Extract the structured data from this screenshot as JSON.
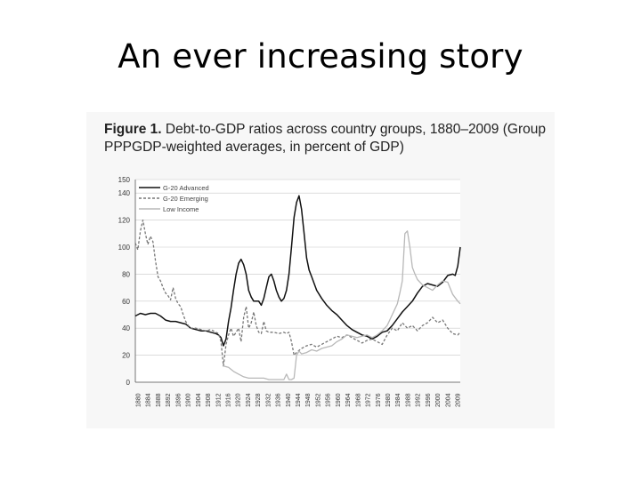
{
  "slide": {
    "title": "An ever increasing story"
  },
  "figure": {
    "label": "Figure 1.",
    "caption": "Debt-to-GDP ratios across country groups, 1880–2009 (Group PPPGDP-weighted averages, in percent of GDP)"
  },
  "chart_data": {
    "type": "line",
    "title": "",
    "xlabel": "",
    "ylabel": "",
    "xlim": [
      1880,
      2009
    ],
    "ylim": [
      0,
      150
    ],
    "yticks": [
      0,
      20,
      40,
      60,
      80,
      100,
      120,
      140,
      150
    ],
    "xticks": [
      "1880",
      "1884",
      "1888",
      "1892",
      "1896",
      "1900",
      "1904",
      "1908",
      "1912",
      "1916",
      "1920",
      "1924",
      "1928",
      "1932",
      "1936",
      "1940",
      "1944",
      "1948",
      "1952",
      "1956",
      "1960",
      "1964",
      "1968",
      "1972",
      "1976",
      "1980",
      "1984",
      "1988",
      "1992",
      "1996",
      "2000",
      "2004",
      "2009"
    ],
    "grid": "horizontal",
    "legend_position": "top-left",
    "series": [
      {
        "name": "G-20 Advanced",
        "color": "#111111",
        "style": "solid",
        "points": [
          [
            1880,
            49
          ],
          [
            1882,
            51
          ],
          [
            1884,
            50
          ],
          [
            1886,
            51
          ],
          [
            1888,
            51
          ],
          [
            1890,
            49
          ],
          [
            1892,
            46
          ],
          [
            1894,
            45
          ],
          [
            1896,
            45
          ],
          [
            1898,
            44
          ],
          [
            1900,
            43
          ],
          [
            1902,
            40
          ],
          [
            1904,
            39
          ],
          [
            1906,
            38
          ],
          [
            1908,
            38
          ],
          [
            1910,
            37
          ],
          [
            1912,
            36
          ],
          [
            1913,
            35
          ],
          [
            1914,
            33
          ],
          [
            1915,
            27
          ],
          [
            1916,
            32
          ],
          [
            1917,
            45
          ],
          [
            1918,
            55
          ],
          [
            1919,
            68
          ],
          [
            1920,
            80
          ],
          [
            1921,
            88
          ],
          [
            1922,
            91
          ],
          [
            1923,
            87
          ],
          [
            1924,
            80
          ],
          [
            1925,
            68
          ],
          [
            1926,
            63
          ],
          [
            1927,
            60
          ],
          [
            1928,
            60
          ],
          [
            1929,
            60
          ],
          [
            1930,
            57
          ],
          [
            1931,
            62
          ],
          [
            1932,
            70
          ],
          [
            1933,
            78
          ],
          [
            1934,
            80
          ],
          [
            1935,
            75
          ],
          [
            1936,
            68
          ],
          [
            1937,
            63
          ],
          [
            1938,
            60
          ],
          [
            1939,
            62
          ],
          [
            1940,
            68
          ],
          [
            1941,
            80
          ],
          [
            1942,
            100
          ],
          [
            1943,
            122
          ],
          [
            1944,
            133
          ],
          [
            1945,
            138
          ],
          [
            1946,
            128
          ],
          [
            1947,
            110
          ],
          [
            1948,
            92
          ],
          [
            1949,
            83
          ],
          [
            1950,
            78
          ],
          [
            1952,
            68
          ],
          [
            1954,
            62
          ],
          [
            1956,
            57
          ],
          [
            1958,
            53
          ],
          [
            1960,
            50
          ],
          [
            1962,
            46
          ],
          [
            1964,
            42
          ],
          [
            1966,
            39
          ],
          [
            1968,
            37
          ],
          [
            1970,
            35
          ],
          [
            1972,
            34
          ],
          [
            1974,
            32
          ],
          [
            1976,
            34
          ],
          [
            1978,
            37
          ],
          [
            1980,
            38
          ],
          [
            1982,
            42
          ],
          [
            1984,
            47
          ],
          [
            1986,
            52
          ],
          [
            1988,
            56
          ],
          [
            1990,
            60
          ],
          [
            1992,
            66
          ],
          [
            1994,
            71
          ],
          [
            1996,
            73
          ],
          [
            1998,
            72
          ],
          [
            2000,
            71
          ],
          [
            2002,
            74
          ],
          [
            2004,
            79
          ],
          [
            2006,
            80
          ],
          [
            2007,
            79
          ],
          [
            2008,
            86
          ],
          [
            2009,
            100
          ]
        ]
      },
      {
        "name": "G-20 Emerging",
        "color": "#777777",
        "style": "dashed",
        "points": [
          [
            1880,
            103
          ],
          [
            1881,
            98
          ],
          [
            1882,
            112
          ],
          [
            1883,
            120
          ],
          [
            1884,
            110
          ],
          [
            1885,
            102
          ],
          [
            1886,
            108
          ],
          [
            1887,
            104
          ],
          [
            1888,
            90
          ],
          [
            1889,
            78
          ],
          [
            1890,
            75
          ],
          [
            1891,
            70
          ],
          [
            1892,
            66
          ],
          [
            1893,
            64
          ],
          [
            1894,
            61
          ],
          [
            1895,
            70
          ],
          [
            1896,
            62
          ],
          [
            1897,
            58
          ],
          [
            1898,
            56
          ],
          [
            1899,
            50
          ],
          [
            1900,
            45
          ],
          [
            1901,
            42
          ],
          [
            1902,
            40
          ],
          [
            1904,
            40
          ],
          [
            1906,
            39
          ],
          [
            1908,
            38
          ],
          [
            1910,
            39
          ],
          [
            1912,
            37
          ],
          [
            1913,
            36
          ],
          [
            1914,
            30
          ],
          [
            1915,
            12
          ],
          [
            1916,
            28
          ],
          [
            1917,
            35
          ],
          [
            1918,
            40
          ],
          [
            1919,
            34
          ],
          [
            1920,
            37
          ],
          [
            1921,
            40
          ],
          [
            1922,
            30
          ],
          [
            1923,
            48
          ],
          [
            1924,
            56
          ],
          [
            1925,
            40
          ],
          [
            1926,
            44
          ],
          [
            1927,
            52
          ],
          [
            1928,
            42
          ],
          [
            1929,
            37
          ],
          [
            1930,
            36
          ],
          [
            1931,
            45
          ],
          [
            1932,
            38
          ],
          [
            1933,
            37
          ],
          [
            1935,
            37
          ],
          [
            1937,
            36
          ],
          [
            1939,
            37
          ],
          [
            1940,
            36
          ],
          [
            1941,
            37
          ],
          [
            1942,
            30
          ],
          [
            1943,
            20
          ],
          [
            1944,
            22
          ],
          [
            1946,
            25
          ],
          [
            1948,
            27
          ],
          [
            1950,
            28
          ],
          [
            1952,
            26
          ],
          [
            1954,
            28
          ],
          [
            1956,
            30
          ],
          [
            1958,
            32
          ],
          [
            1960,
            34
          ],
          [
            1962,
            33
          ],
          [
            1964,
            35
          ],
          [
            1966,
            33
          ],
          [
            1968,
            31
          ],
          [
            1970,
            29
          ],
          [
            1972,
            31
          ],
          [
            1974,
            32
          ],
          [
            1976,
            30
          ],
          [
            1978,
            28
          ],
          [
            1980,
            35
          ],
          [
            1982,
            40
          ],
          [
            1984,
            38
          ],
          [
            1986,
            44
          ],
          [
            1988,
            40
          ],
          [
            1990,
            42
          ],
          [
            1992,
            38
          ],
          [
            1994,
            42
          ],
          [
            1996,
            44
          ],
          [
            1998,
            48
          ],
          [
            2000,
            44
          ],
          [
            2002,
            46
          ],
          [
            2004,
            40
          ],
          [
            2006,
            36
          ],
          [
            2008,
            35
          ],
          [
            2009,
            37
          ]
        ]
      },
      {
        "name": "Low Income",
        "color": "#b8b8b8",
        "style": "solid",
        "points": [
          [
            1915,
            12
          ],
          [
            1917,
            11
          ],
          [
            1919,
            8
          ],
          [
            1921,
            6
          ],
          [
            1923,
            4
          ],
          [
            1925,
            3
          ],
          [
            1927,
            3
          ],
          [
            1929,
            3
          ],
          [
            1931,
            3
          ],
          [
            1933,
            2
          ],
          [
            1935,
            2
          ],
          [
            1937,
            2
          ],
          [
            1939,
            2
          ],
          [
            1940,
            6
          ],
          [
            1941,
            2
          ],
          [
            1942,
            2
          ],
          [
            1943,
            3
          ],
          [
            1944,
            20
          ],
          [
            1945,
            23
          ],
          [
            1946,
            21
          ],
          [
            1948,
            22
          ],
          [
            1950,
            24
          ],
          [
            1952,
            23
          ],
          [
            1954,
            25
          ],
          [
            1956,
            26
          ],
          [
            1958,
            27
          ],
          [
            1960,
            30
          ],
          [
            1962,
            32
          ],
          [
            1964,
            35
          ],
          [
            1966,
            34
          ],
          [
            1968,
            33
          ],
          [
            1970,
            34
          ],
          [
            1972,
            35
          ],
          [
            1974,
            33
          ],
          [
            1976,
            35
          ],
          [
            1978,
            38
          ],
          [
            1980,
            42
          ],
          [
            1982,
            50
          ],
          [
            1984,
            58
          ],
          [
            1985,
            66
          ],
          [
            1986,
            75
          ],
          [
            1987,
            110
          ],
          [
            1988,
            112
          ],
          [
            1989,
            100
          ],
          [
            1990,
            85
          ],
          [
            1991,
            80
          ],
          [
            1992,
            76
          ],
          [
            1994,
            72
          ],
          [
            1996,
            70
          ],
          [
            1998,
            68
          ],
          [
            2000,
            72
          ],
          [
            2002,
            75
          ],
          [
            2004,
            74
          ],
          [
            2006,
            65
          ],
          [
            2008,
            60
          ],
          [
            2009,
            58
          ]
        ]
      }
    ]
  }
}
